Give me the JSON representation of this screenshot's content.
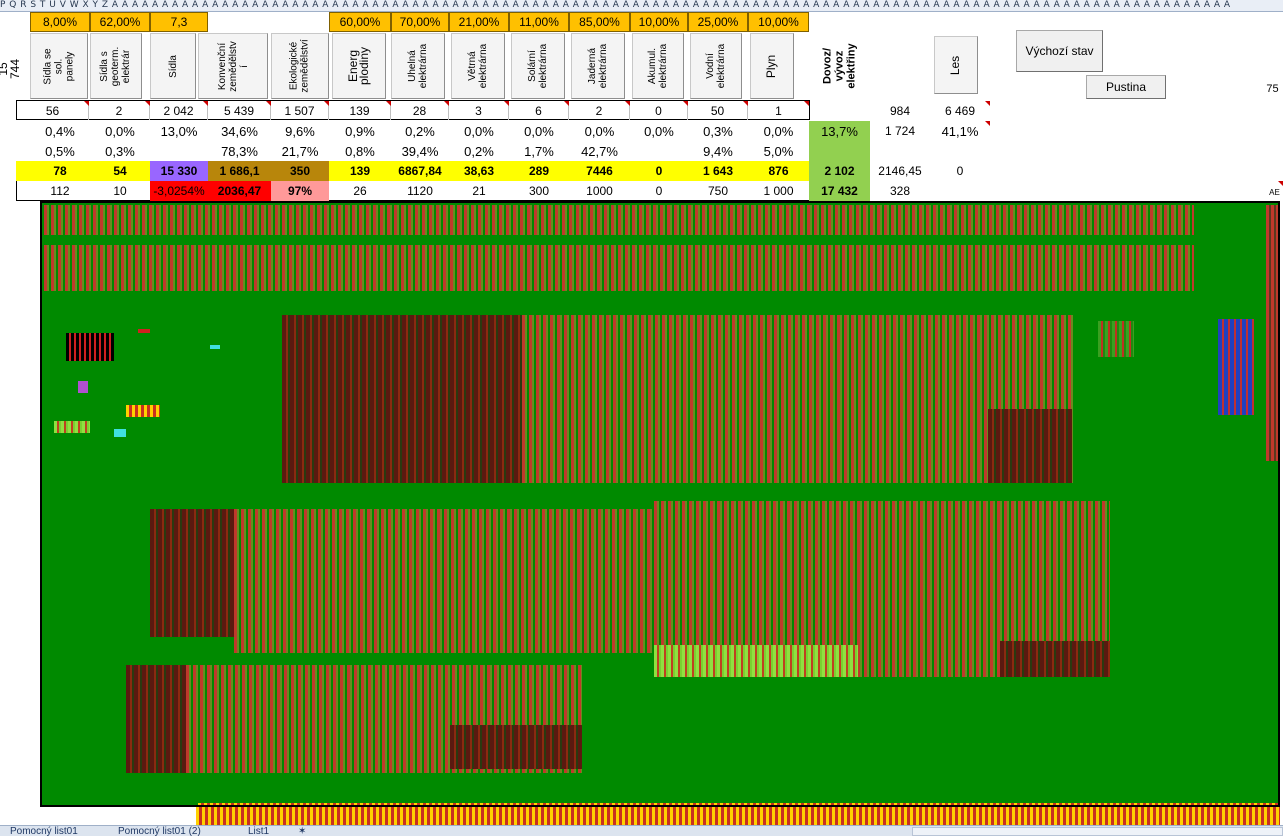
{
  "column_headers": "P Q R S T U V W X Y Z A A A A A A A A A A A A A A A A A A A A A A A A A A A A A A A A A A A A A A A A A A A A A A A A A A A A A A A A A A A A A A A A A A A A A A A A A A A A A A A A A A A A A A A A A A A A A A A A A A A A A A A A A A A A A A A A",
  "left_number": "15 744",
  "right_number": "75",
  "percents": [
    "8,00%",
    "62,00%",
    "7,3",
    "60,00%",
    "70,00%",
    "21,00%",
    "11,00%",
    "85,00%",
    "10,00%",
    "25,00%",
    "10,00%"
  ],
  "headers": {
    "solar_settlements": "Sídla se\nsol.\npanely",
    "geotherm_settlements": "Sídla s\ngeoterm.\nelektrár",
    "settlements": "Sídla",
    "conventional_agri": "Konvenční\nzemědělstv\ní",
    "ecological_agri": "Ekologické\nzemědělství",
    "energy_crops": "Energ\nplodiny",
    "coal_plant": "Uhelná\nelektrárna",
    "wind_plant": "Větrná\nelektrárna",
    "solar_plant": "Solární\nelektrárna",
    "nuclear_plant": "Jaderná\nelektrárna",
    "accumulation_plant": "Akumul.\nelektrárna",
    "water_plant": "Vodní\nelektrárna",
    "gas": "Plyn",
    "import_export": "Dovoz/\nvývoz\nelektřiny",
    "forest": "Les"
  },
  "buttons": {
    "default_state": "Výchozí stav",
    "wasteland": "Pustina"
  },
  "row1": [
    "56",
    "2",
    "2 042",
    "5 439",
    "1 507",
    "139",
    "28",
    "3",
    "6",
    "2",
    "0",
    "50",
    "1",
    "",
    "984",
    "6 469"
  ],
  "row2": [
    "0,4%",
    "0,0%",
    "13,0%",
    "34,6%",
    "9,6%",
    "0,9%",
    "0,2%",
    "0,0%",
    "0,0%",
    "0,0%",
    "0,0%",
    "0,3%",
    "0,0%",
    "13,7%",
    "1 724",
    "41,1%"
  ],
  "row3": [
    "0,5%",
    "0,3%",
    "",
    "78,3%",
    "21,7%",
    "0,8%",
    "39,4%",
    "0,2%",
    "1,7%",
    "42,7%",
    "",
    "9,4%",
    "5,0%",
    "",
    "",
    ""
  ],
  "row4": [
    "78",
    "54",
    "15 330",
    "1 686,1",
    "350",
    "139",
    "6867,84",
    "38,63",
    "289",
    "7446",
    "0",
    "1 643",
    "876",
    "2 102",
    "2146,45",
    "0"
  ],
  "row5": [
    "112",
    "10",
    "-3,0254%",
    "2036,47",
    "97%",
    "26",
    "1120",
    "21",
    "300",
    "1000",
    "0",
    "750",
    "1 000",
    "17 432",
    "328",
    ""
  ],
  "corner_marker": "AE",
  "sheet_tabs": [
    "Pomocný list01",
    "Pomocný list01 (2)",
    "List1"
  ],
  "colors": {
    "map_green": "#008a00",
    "percent_orange": "#ffc000",
    "row_yellow": "#ffff00",
    "settlement_purple": "#9966ff",
    "agri_brown": "#b8860b",
    "negative_red": "#ff0000",
    "eco_pink": "#ff9999",
    "import_green": "#92d050"
  }
}
